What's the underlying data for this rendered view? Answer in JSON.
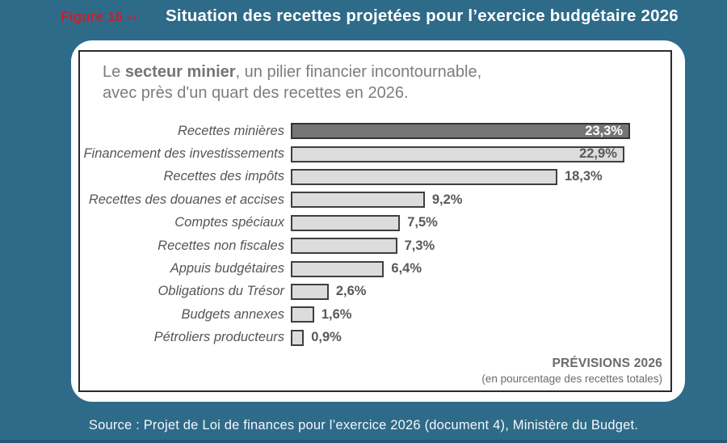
{
  "page": {
    "background_color": "#2e6b89",
    "bottom_strip_color": "#235877",
    "figure_label": "Figure 16 ››",
    "figure_label_color": "#c9202c",
    "title": "Situation des recettes projetées pour l’exercice budgétaire 2026",
    "source": "Source : Projet de Loi de finances pour l’exercice 2026 (document 4), Ministère du Budget."
  },
  "panel": {
    "headline_prefix": "Le ",
    "headline_bold": "secteur minier",
    "headline_suffix": ", un pilier financier incontournable,",
    "headline_line2": "avec près d'un quart des recettes en 2026.",
    "note_title": "PRÉVISIONS 2026",
    "note_subtitle": "(en pourcentage des recettes totales)"
  },
  "chart_data": {
    "type": "bar",
    "orientation": "horizontal",
    "title": "Le secteur minier, un pilier financier incontournable, avec près d'un quart des recettes en 2026.",
    "xlabel": "",
    "ylabel": "",
    "unit": "% des recettes totales",
    "xlim": [
      0,
      25
    ],
    "grid": false,
    "categories": [
      "Recettes minières",
      "Financement des investissements",
      "Recettes des impôts",
      "Recettes des douanes et accises",
      "Comptes spéciaux",
      "Recettes non fiscales",
      "Appuis budgétaires",
      "Obligations du Trésor",
      "Budgets annexes",
      "Pétroliers producteurs"
    ],
    "values": [
      23.3,
      22.9,
      18.3,
      9.2,
      7.5,
      7.3,
      6.4,
      2.6,
      1.6,
      0.9
    ],
    "value_labels": [
      "23,3%",
      "22,9%",
      "18,3%",
      "9,2%",
      "7,5%",
      "7,3%",
      "6,4%",
      "2,6%",
      "1,6%",
      "0,9%"
    ],
    "highlight_index": 0,
    "bar_color": "#dcdcdc",
    "highlight_color": "#757575",
    "bar_border_color": "#3f3f3f"
  }
}
